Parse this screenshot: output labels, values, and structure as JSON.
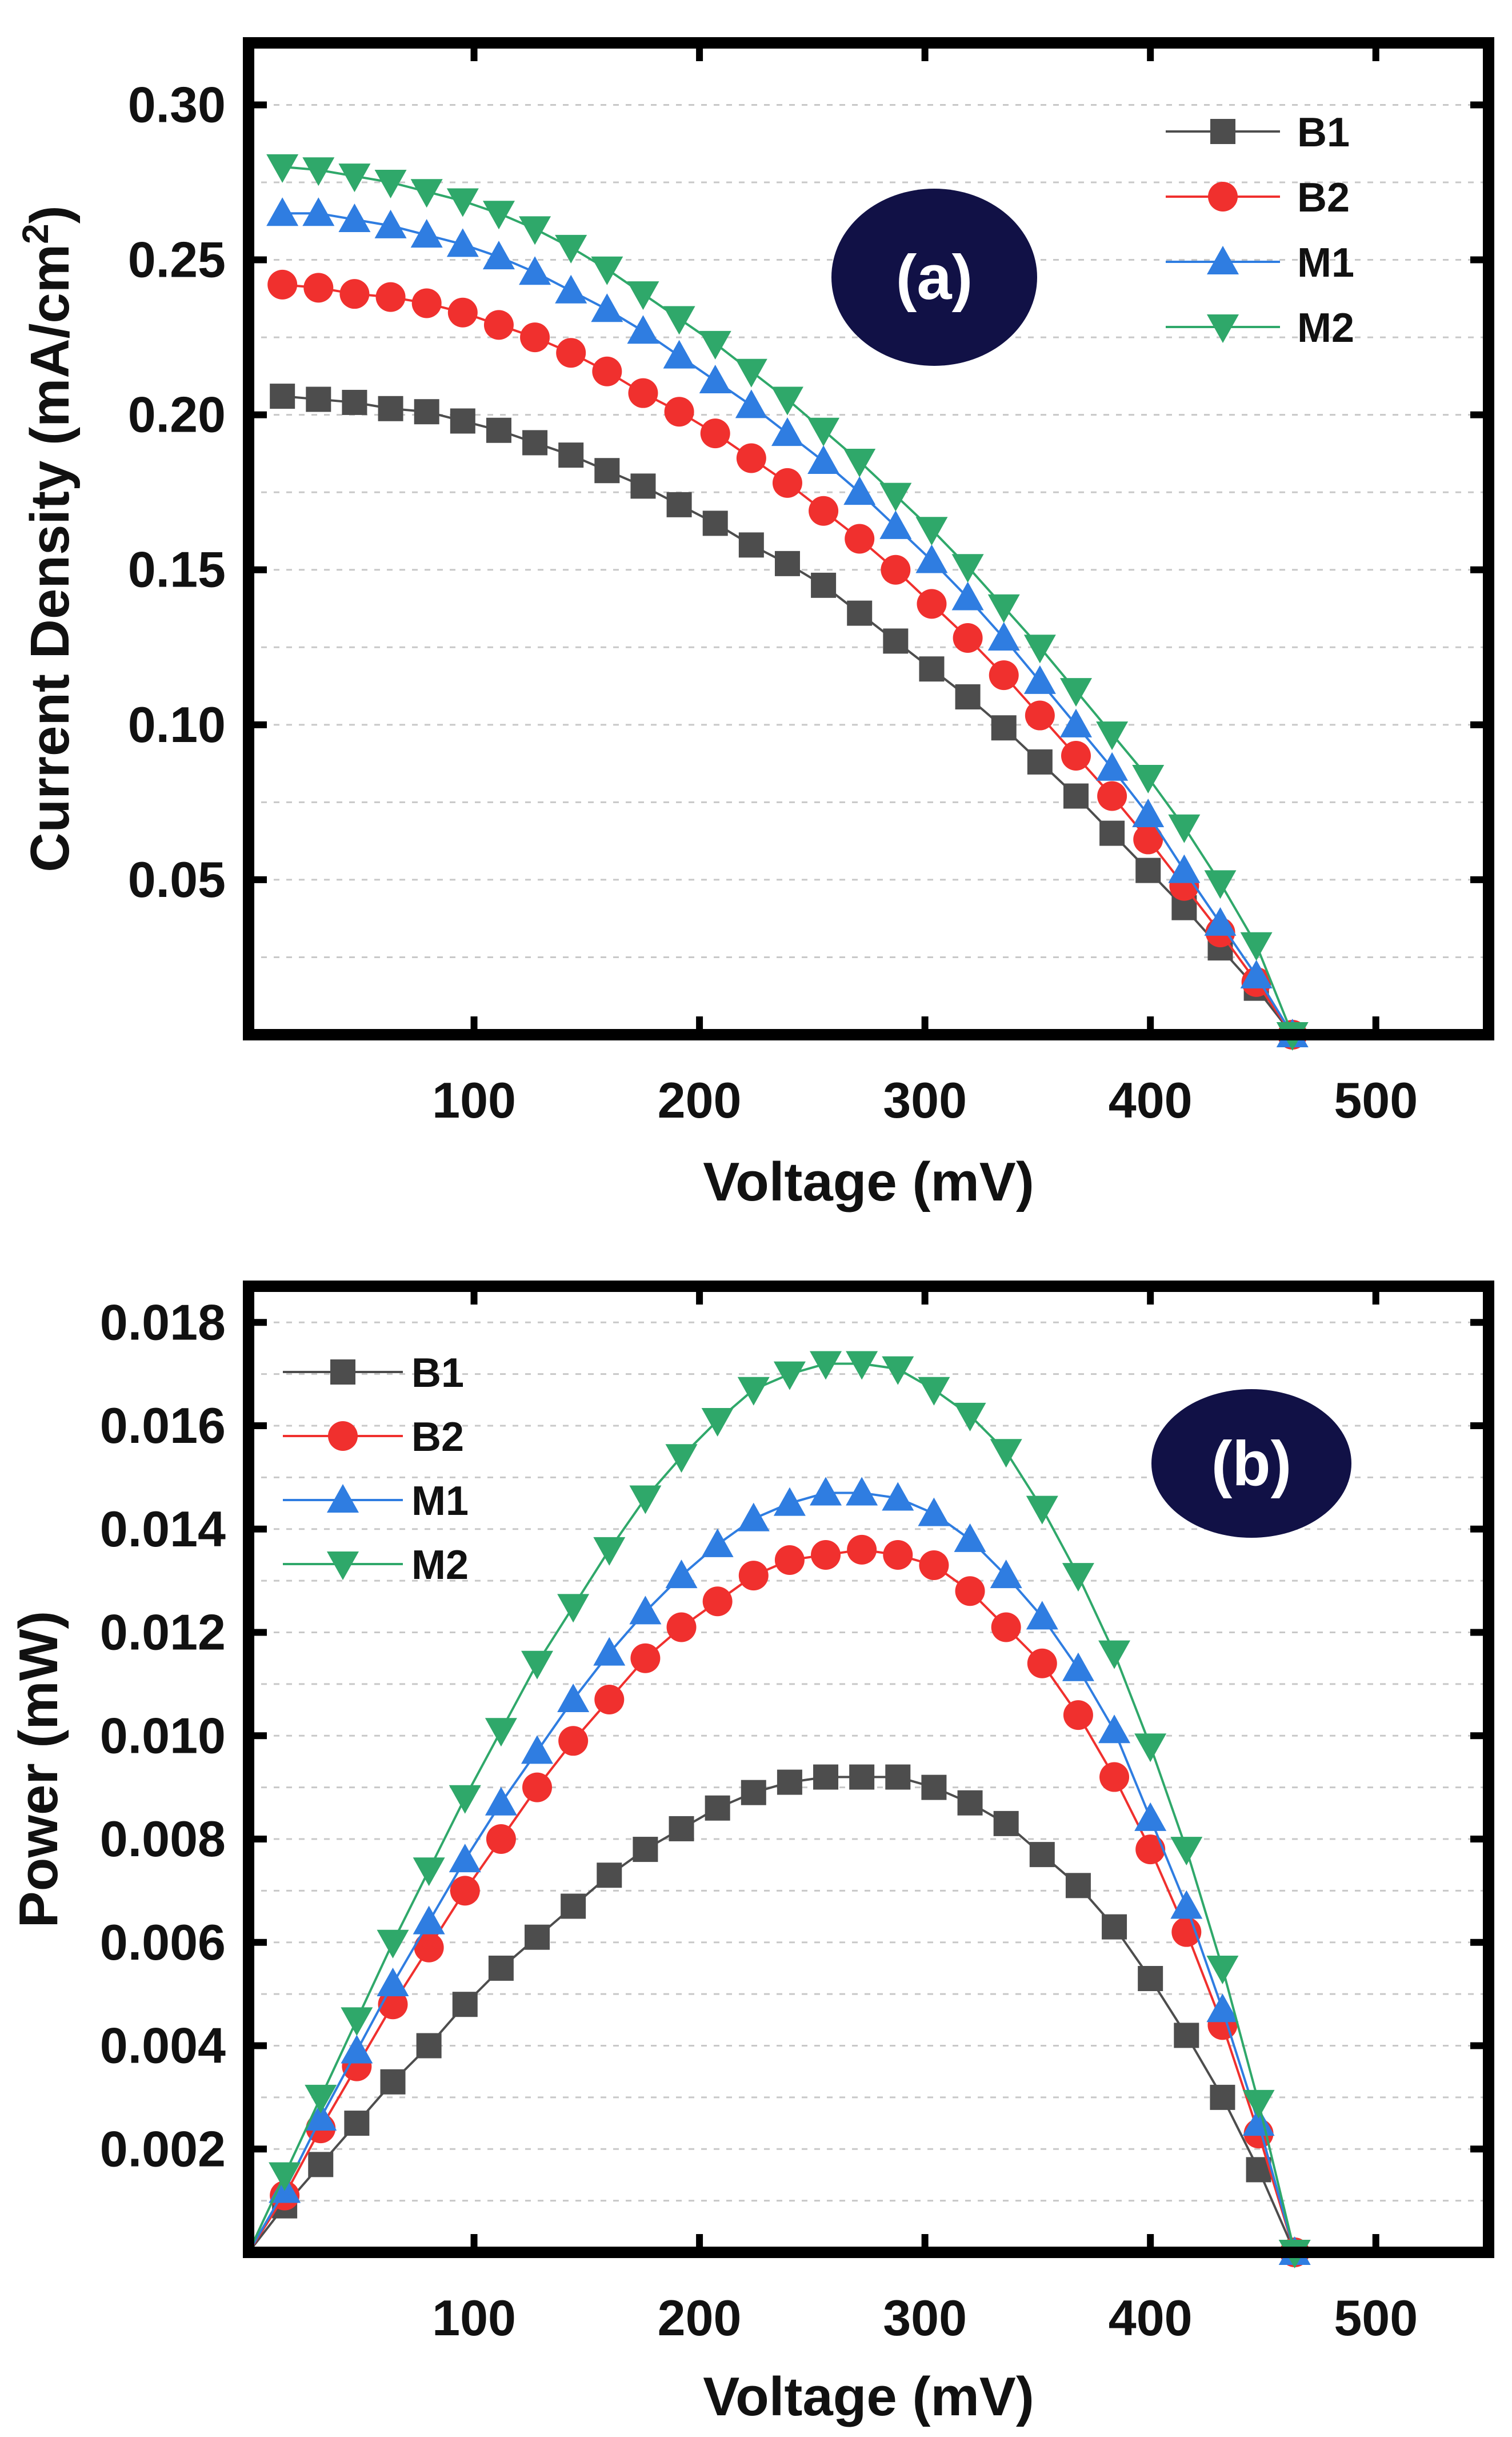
{
  "chart_data": [
    {
      "type": "line",
      "panel_label": "(a)",
      "xlabel": "Voltage (mV)",
      "ylabel": "Current Density (mA/cm",
      "ylabel_sup": "2",
      "ylabel_end": ")",
      "xlim": [
        0,
        550
      ],
      "ylim": [
        0,
        0.32
      ],
      "xticks": [
        100,
        200,
        300,
        400,
        500
      ],
      "xtick_labels": [
        "100",
        "200",
        "300",
        "400",
        "500"
      ],
      "yticks": [
        0.05,
        0.1,
        0.15,
        0.2,
        0.25,
        0.3
      ],
      "ytick_labels": [
        "0.05",
        "0.10",
        "0.15",
        "0.20",
        "0.25",
        "0.30"
      ],
      "grid": "horizontal dashed",
      "legend_position": "top-right",
      "series": [
        {
          "name": "B1",
          "marker": "square",
          "color": "#4d4d4d",
          "x": [
            15,
            31,
            47,
            63,
            79,
            95,
            111,
            127,
            143,
            159,
            175,
            191,
            207,
            223,
            239,
            255,
            271,
            287,
            303,
            319,
            335,
            351,
            367,
            383,
            399,
            415,
            431,
            447,
            463
          ],
          "y": [
            0.206,
            0.205,
            0.204,
            0.202,
            0.201,
            0.198,
            0.195,
            0.191,
            0.187,
            0.182,
            0.177,
            0.171,
            0.165,
            0.158,
            0.152,
            0.145,
            0.136,
            0.127,
            0.118,
            0.109,
            0.099,
            0.088,
            0.077,
            0.065,
            0.053,
            0.041,
            0.028,
            0.015,
            0.0
          ]
        },
        {
          "name": "B2",
          "marker": "circle",
          "color": "#f0302e",
          "x": [
            15,
            31,
            47,
            63,
            79,
            95,
            111,
            127,
            143,
            159,
            175,
            191,
            207,
            223,
            239,
            255,
            271,
            287,
            303,
            319,
            335,
            351,
            367,
            383,
            399,
            415,
            431,
            447,
            463
          ],
          "y": [
            0.242,
            0.241,
            0.239,
            0.238,
            0.236,
            0.233,
            0.229,
            0.225,
            0.22,
            0.214,
            0.207,
            0.201,
            0.194,
            0.186,
            0.178,
            0.169,
            0.16,
            0.15,
            0.139,
            0.128,
            0.116,
            0.103,
            0.09,
            0.077,
            0.063,
            0.048,
            0.033,
            0.017,
            0.0
          ]
        },
        {
          "name": "M1",
          "marker": "triangle-up",
          "color": "#2f7de1",
          "x": [
            15,
            31,
            47,
            63,
            79,
            95,
            111,
            127,
            143,
            159,
            175,
            191,
            207,
            223,
            239,
            255,
            271,
            287,
            303,
            319,
            335,
            351,
            367,
            383,
            399,
            415,
            431,
            447,
            463
          ],
          "y": [
            0.265,
            0.265,
            0.263,
            0.261,
            0.258,
            0.255,
            0.251,
            0.246,
            0.24,
            0.234,
            0.227,
            0.219,
            0.211,
            0.203,
            0.194,
            0.185,
            0.175,
            0.164,
            0.153,
            0.141,
            0.128,
            0.114,
            0.1,
            0.086,
            0.071,
            0.053,
            0.036,
            0.019,
            0.0
          ]
        },
        {
          "name": "M2",
          "marker": "triangle-down",
          "color": "#2fa86a",
          "x": [
            15,
            31,
            47,
            63,
            79,
            95,
            111,
            127,
            143,
            159,
            175,
            191,
            207,
            223,
            239,
            255,
            271,
            287,
            303,
            319,
            335,
            351,
            367,
            383,
            399,
            415,
            431,
            447,
            463
          ],
          "y": [
            0.28,
            0.279,
            0.277,
            0.275,
            0.272,
            0.269,
            0.265,
            0.26,
            0.254,
            0.247,
            0.239,
            0.231,
            0.223,
            0.214,
            0.205,
            0.195,
            0.185,
            0.174,
            0.163,
            0.151,
            0.138,
            0.125,
            0.111,
            0.097,
            0.083,
            0.067,
            0.049,
            0.029,
            0.0
          ]
        }
      ]
    },
    {
      "type": "line",
      "panel_label": "(b)",
      "xlabel": "Voltage (mV)",
      "ylabel": "Power (mW)",
      "xlim": [
        0,
        550
      ],
      "ylim": [
        0,
        0.0187
      ],
      "xticks": [
        100,
        200,
        300,
        400,
        500
      ],
      "xtick_labels": [
        "100",
        "200",
        "300",
        "400",
        "500"
      ],
      "yticks": [
        0.002,
        0.004,
        0.006,
        0.008,
        0.01,
        0.012,
        0.014,
        0.016,
        0.018
      ],
      "ytick_labels": [
        "0.002",
        "0.004",
        "0.006",
        "0.008",
        "0.010",
        "0.012",
        "0.014",
        "0.016",
        "0.018"
      ],
      "grid": "horizontal dashed",
      "legend_position": "top-left",
      "series": [
        {
          "name": "B1",
          "marker": "square",
          "color": "#4d4d4d",
          "x": [
            0,
            16,
            32,
            48,
            64,
            80,
            96,
            112,
            128,
            144,
            160,
            176,
            192,
            208,
            224,
            240,
            256,
            272,
            288,
            304,
            320,
            336,
            352,
            368,
            384,
            400,
            416,
            432,
            448,
            464
          ],
          "y": [
            0.0,
            0.0009,
            0.0017,
            0.0025,
            0.0033,
            0.004,
            0.0048,
            0.0055,
            0.0061,
            0.0067,
            0.0073,
            0.0078,
            0.0082,
            0.0086,
            0.0089,
            0.0091,
            0.0092,
            0.0092,
            0.0092,
            0.009,
            0.0087,
            0.0083,
            0.0077,
            0.0071,
            0.0063,
            0.0053,
            0.0042,
            0.003,
            0.0016,
            0.0
          ]
        },
        {
          "name": "B2",
          "marker": "circle",
          "color": "#f0302e",
          "x": [
            0,
            16,
            32,
            48,
            64,
            80,
            96,
            112,
            128,
            144,
            160,
            176,
            192,
            208,
            224,
            240,
            256,
            272,
            288,
            304,
            320,
            336,
            352,
            368,
            384,
            400,
            416,
            432,
            448,
            464
          ],
          "y": [
            0.0,
            0.0011,
            0.0024,
            0.0036,
            0.0048,
            0.0059,
            0.007,
            0.008,
            0.009,
            0.0099,
            0.0107,
            0.0115,
            0.0121,
            0.0126,
            0.0131,
            0.0134,
            0.0135,
            0.0136,
            0.0135,
            0.0133,
            0.0128,
            0.0121,
            0.0114,
            0.0104,
            0.0092,
            0.0078,
            0.0062,
            0.0044,
            0.0023,
            0.0
          ]
        },
        {
          "name": "M1",
          "marker": "triangle-up",
          "color": "#2f7de1",
          "x": [
            0,
            16,
            32,
            48,
            64,
            80,
            96,
            112,
            128,
            144,
            160,
            176,
            192,
            208,
            224,
            240,
            256,
            272,
            288,
            304,
            320,
            336,
            352,
            368,
            384,
            400,
            416,
            432,
            448,
            464
          ],
          "y": [
            0.0,
            0.0012,
            0.0026,
            0.0039,
            0.0052,
            0.0064,
            0.0076,
            0.0087,
            0.0097,
            0.0107,
            0.0116,
            0.0124,
            0.0131,
            0.0137,
            0.0142,
            0.0145,
            0.0147,
            0.0147,
            0.0146,
            0.0143,
            0.0138,
            0.0131,
            0.0123,
            0.0113,
            0.0101,
            0.0084,
            0.0067,
            0.0047,
            0.0025,
            0.0
          ]
        },
        {
          "name": "M2",
          "marker": "triangle-down",
          "color": "#2fa86a",
          "x": [
            0,
            16,
            32,
            48,
            64,
            80,
            96,
            112,
            128,
            144,
            160,
            176,
            192,
            208,
            224,
            240,
            256,
            272,
            288,
            304,
            320,
            336,
            352,
            368,
            384,
            400,
            416,
            432,
            448,
            464
          ],
          "y": [
            0.0,
            0.0015,
            0.003,
            0.0045,
            0.006,
            0.0074,
            0.0088,
            0.0101,
            0.0114,
            0.0125,
            0.0136,
            0.0146,
            0.0154,
            0.0161,
            0.0167,
            0.017,
            0.0172,
            0.0172,
            0.0171,
            0.0167,
            0.0162,
            0.0155,
            0.0144,
            0.0131,
            0.0116,
            0.0098,
            0.0078,
            0.0055,
            0.0029,
            0.0
          ]
        }
      ]
    }
  ],
  "badge_color": "#111146"
}
